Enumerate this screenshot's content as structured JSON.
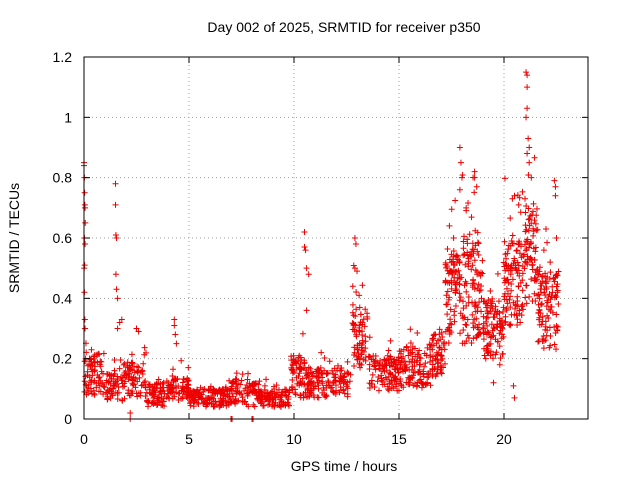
{
  "chart_data": {
    "type": "scatter",
    "title": "Day 002 of 2025, SRMTID for receiver p350",
    "xlabel": "GPS time / hours",
    "ylabel": "SRMTID / TECUs",
    "xlim": [
      0,
      24
    ],
    "ylim": [
      0,
      1.2
    ],
    "x_ticks": [
      0,
      5,
      10,
      15,
      20
    ],
    "y_ticks": [
      0,
      0.2,
      0.4,
      0.6,
      0.8,
      1,
      1.2
    ],
    "x_tick_labels": [
      "0",
      "5",
      "10",
      "15",
      "20"
    ],
    "y_tick_labels": [
      "0",
      "0.2",
      "0.4",
      "0.6",
      "0.8",
      "1",
      "1.2"
    ],
    "grid": true,
    "marker": "plus",
    "color": "#ee0000",
    "series": [
      {
        "name": "SRMTID",
        "segments": [
          {
            "t0": 0.0,
            "t1": 0.25,
            "base": 0.14,
            "spread": 0.06,
            "n": 20
          },
          {
            "t0": 0.25,
            "t1": 1.0,
            "base": 0.15,
            "spread": 0.07,
            "n": 60
          },
          {
            "t0": 1.0,
            "t1": 2.0,
            "base": 0.11,
            "spread": 0.05,
            "n": 70
          },
          {
            "t0": 2.0,
            "t1": 3.0,
            "base": 0.13,
            "spread": 0.06,
            "n": 70
          },
          {
            "t0": 3.0,
            "t1": 4.2,
            "base": 0.08,
            "spread": 0.04,
            "n": 80
          },
          {
            "t0": 4.2,
            "t1": 5.0,
            "base": 0.1,
            "spread": 0.04,
            "n": 60
          },
          {
            "t0": 5.0,
            "t1": 7.0,
            "base": 0.07,
            "spread": 0.03,
            "n": 140
          },
          {
            "t0": 7.0,
            "t1": 7.6,
            "base": 0.09,
            "spread": 0.04,
            "n": 40
          },
          {
            "t0": 7.6,
            "t1": 8.2,
            "base": 0.08,
            "spread": 0.04,
            "n": 40
          },
          {
            "t0": 8.2,
            "t1": 9.8,
            "base": 0.07,
            "spread": 0.03,
            "n": 110
          },
          {
            "t0": 9.8,
            "t1": 10.5,
            "base": 0.14,
            "spread": 0.07,
            "n": 60
          },
          {
            "t0": 10.5,
            "t1": 12.7,
            "base": 0.12,
            "spread": 0.05,
            "n": 150
          },
          {
            "t0": 12.7,
            "t1": 13.5,
            "base": 0.27,
            "spread": 0.1,
            "n": 70
          },
          {
            "t0": 13.5,
            "t1": 15.0,
            "base": 0.15,
            "spread": 0.06,
            "n": 110
          },
          {
            "t0": 15.0,
            "t1": 16.5,
            "base": 0.17,
            "spread": 0.07,
            "n": 110
          },
          {
            "t0": 16.5,
            "t1": 17.2,
            "base": 0.22,
            "spread": 0.08,
            "n": 60
          },
          {
            "t0": 17.2,
            "t1": 18.0,
            "base": 0.4,
            "spread": 0.15,
            "n": 90
          },
          {
            "t0": 18.0,
            "t1": 19.0,
            "base": 0.42,
            "spread": 0.17,
            "n": 110
          },
          {
            "t0": 19.0,
            "t1": 20.0,
            "base": 0.3,
            "spread": 0.1,
            "n": 100
          },
          {
            "t0": 20.0,
            "t1": 21.0,
            "base": 0.45,
            "spread": 0.14,
            "n": 110
          },
          {
            "t0": 21.0,
            "t1": 21.6,
            "base": 0.55,
            "spread": 0.17,
            "n": 70
          },
          {
            "t0": 21.6,
            "t1": 22.6,
            "base": 0.36,
            "spread": 0.13,
            "n": 100
          }
        ],
        "peaks": [
          {
            "x": 0.0,
            "y": 0.85
          },
          {
            "x": 0.0,
            "y": 0.84
          },
          {
            "x": 0.02,
            "y": 0.8
          },
          {
            "x": 0.03,
            "y": 0.75
          },
          {
            "x": 0.04,
            "y": 0.71
          },
          {
            "x": 0.05,
            "y": 0.7
          },
          {
            "x": 0.06,
            "y": 0.65
          },
          {
            "x": 0.02,
            "y": 0.6
          },
          {
            "x": 0.05,
            "y": 0.58
          },
          {
            "x": 0.03,
            "y": 0.51
          },
          {
            "x": 0.01,
            "y": 0.5
          },
          {
            "x": 0.02,
            "y": 0.42
          },
          {
            "x": 0.04,
            "y": 0.33
          },
          {
            "x": 0.05,
            "y": 0.3
          },
          {
            "x": 1.5,
            "y": 0.78
          },
          {
            "x": 1.5,
            "y": 0.71
          },
          {
            "x": 1.52,
            "y": 0.61
          },
          {
            "x": 1.55,
            "y": 0.6
          },
          {
            "x": 1.52,
            "y": 0.48
          },
          {
            "x": 1.55,
            "y": 0.43
          },
          {
            "x": 1.6,
            "y": 0.4
          },
          {
            "x": 1.6,
            "y": 0.3
          },
          {
            "x": 1.7,
            "y": 0.32
          },
          {
            "x": 1.8,
            "y": 0.33
          },
          {
            "x": 2.2,
            "y": 0.0
          },
          {
            "x": 2.2,
            "y": 0.02
          },
          {
            "x": 2.5,
            "y": 0.3
          },
          {
            "x": 2.6,
            "y": 0.29
          },
          {
            "x": 4.3,
            "y": 0.33
          },
          {
            "x": 4.3,
            "y": 0.31
          },
          {
            "x": 4.35,
            "y": 0.28
          },
          {
            "x": 4.4,
            "y": 0.25
          },
          {
            "x": 7.0,
            "y": 0.0
          },
          {
            "x": 7.05,
            "y": 0.0
          },
          {
            "x": 8.0,
            "y": 0.0
          },
          {
            "x": 8.05,
            "y": 0.0
          },
          {
            "x": 10.5,
            "y": 0.62
          },
          {
            "x": 10.5,
            "y": 0.57
          },
          {
            "x": 10.55,
            "y": 0.56
          },
          {
            "x": 10.6,
            "y": 0.5
          },
          {
            "x": 10.7,
            "y": 0.48
          },
          {
            "x": 10.6,
            "y": 0.36
          },
          {
            "x": 12.9,
            "y": 0.6
          },
          {
            "x": 12.95,
            "y": 0.58
          },
          {
            "x": 12.9,
            "y": 0.5
          },
          {
            "x": 13.0,
            "y": 0.49
          },
          {
            "x": 13.1,
            "y": 0.41
          },
          {
            "x": 12.8,
            "y": 0.44
          },
          {
            "x": 17.4,
            "y": 0.64
          },
          {
            "x": 17.6,
            "y": 0.6
          },
          {
            "x": 17.9,
            "y": 0.9
          },
          {
            "x": 17.95,
            "y": 0.85
          },
          {
            "x": 18.0,
            "y": 0.8
          },
          {
            "x": 17.9,
            "y": 0.76
          },
          {
            "x": 18.6,
            "y": 0.8
          },
          {
            "x": 18.6,
            "y": 0.82
          },
          {
            "x": 18.7,
            "y": 0.77
          },
          {
            "x": 18.2,
            "y": 0.7
          },
          {
            "x": 19.5,
            "y": 0.12
          },
          {
            "x": 19.8,
            "y": 0.18
          },
          {
            "x": 20.4,
            "y": 0.73
          },
          {
            "x": 20.5,
            "y": 0.74
          },
          {
            "x": 20.7,
            "y": 0.71
          },
          {
            "x": 20.5,
            "y": 0.07
          },
          {
            "x": 20.45,
            "y": 0.11
          },
          {
            "x": 21.05,
            "y": 1.15
          },
          {
            "x": 21.1,
            "y": 1.14
          },
          {
            "x": 21.1,
            "y": 1.1
          },
          {
            "x": 21.1,
            "y": 1.03
          },
          {
            "x": 21.05,
            "y": 1.0
          },
          {
            "x": 21.15,
            "y": 0.93
          },
          {
            "x": 21.2,
            "y": 0.9
          },
          {
            "x": 21.1,
            "y": 0.88
          },
          {
            "x": 21.2,
            "y": 0.85
          },
          {
            "x": 21.3,
            "y": 0.8
          },
          {
            "x": 21.0,
            "y": 0.73
          },
          {
            "x": 22.4,
            "y": 0.79
          },
          {
            "x": 22.45,
            "y": 0.77
          },
          {
            "x": 22.45,
            "y": 0.74
          },
          {
            "x": 22.5,
            "y": 0.6
          },
          {
            "x": 22.5,
            "y": 0.48
          },
          {
            "x": 22.2,
            "y": 0.52
          },
          {
            "x": 22.0,
            "y": 0.63
          },
          {
            "x": 21.9,
            "y": 0.56
          }
        ]
      }
    ]
  }
}
